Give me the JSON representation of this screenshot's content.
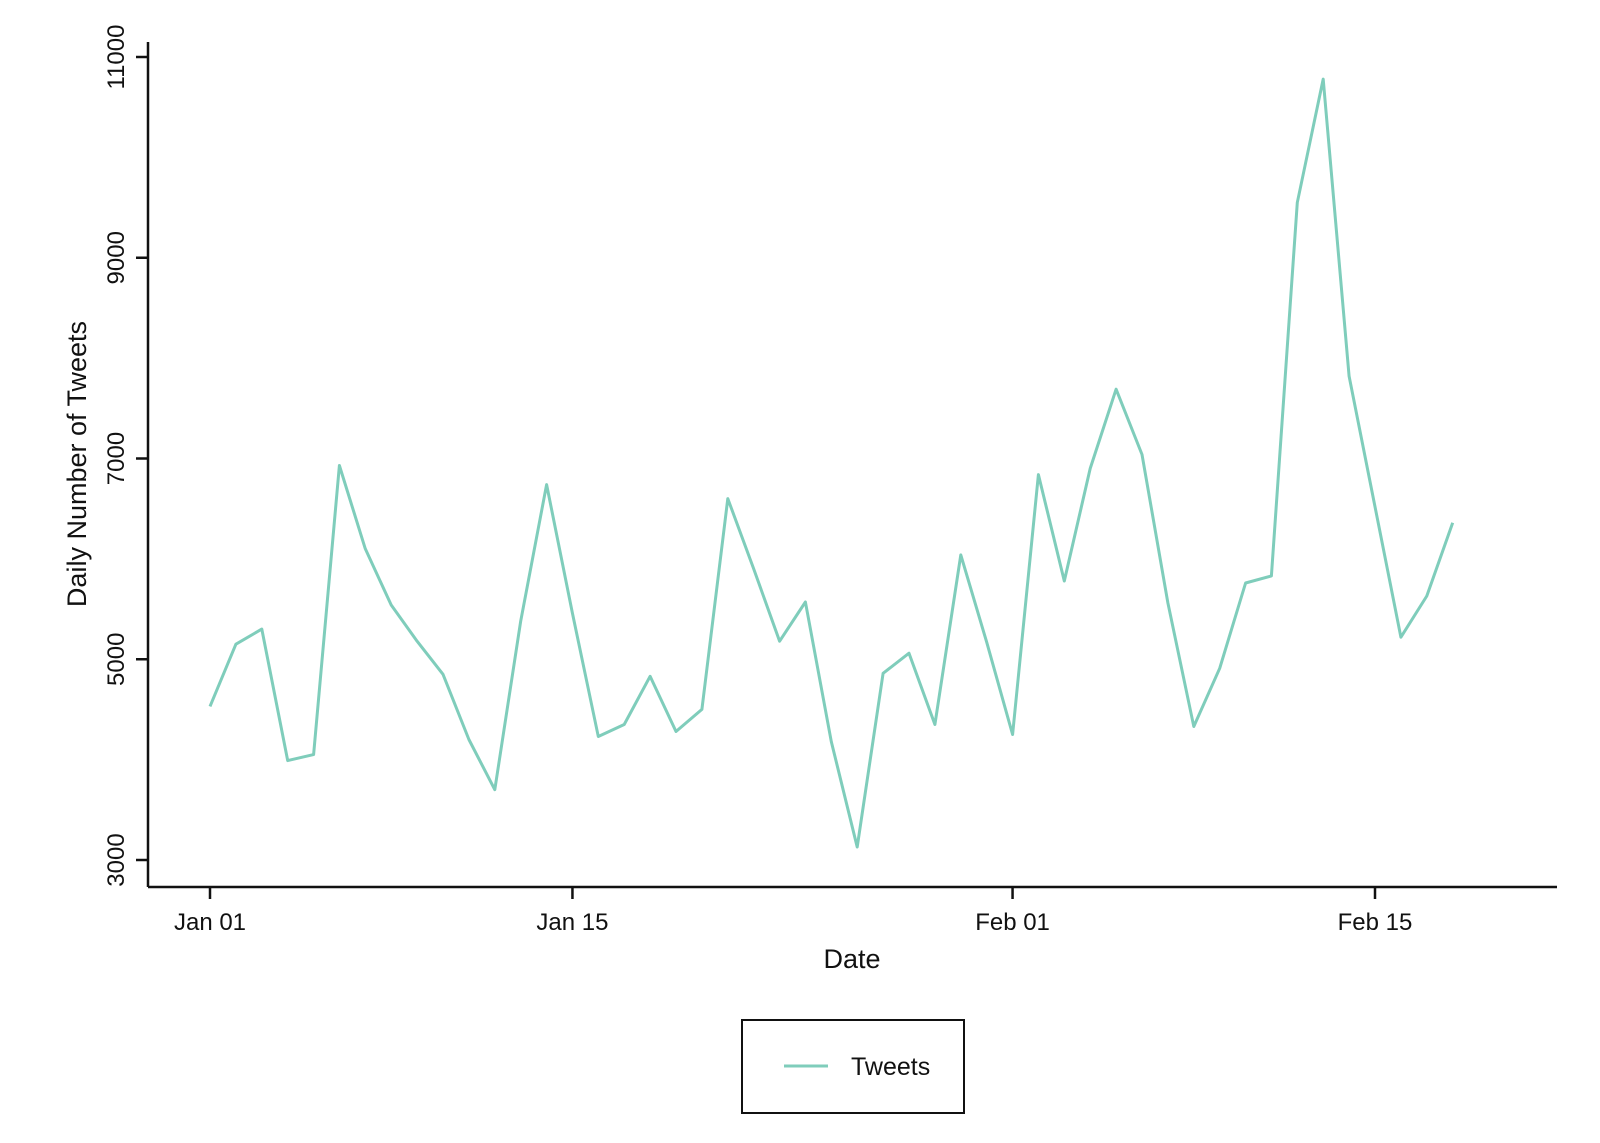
{
  "chart_data": {
    "type": "line",
    "title": "",
    "xlabel": "Date",
    "ylabel": "Daily Number of Tweets",
    "ylim": [
      3000,
      11200
    ],
    "xlim": [
      "2019-12-29",
      "2020-02-22"
    ],
    "yticks": [
      3000,
      5000,
      7000,
      9000,
      11000
    ],
    "yticklabels": [
      "3000",
      "5000",
      "7000",
      "9000",
      "11000"
    ],
    "xticks": [
      "2020-01-01",
      "2020-01-15",
      "2020-02-01",
      "2020-02-15"
    ],
    "xticklabels": [
      "Jan 01",
      "Jan 15",
      "Feb 01",
      "Feb 15"
    ],
    "grid": false,
    "legend": {
      "position": "bottom-center",
      "entries": [
        "Tweets"
      ]
    },
    "series": [
      {
        "name": "Tweets",
        "color": "#7fcdbb",
        "x": [
          "2020-01-01",
          "2020-01-02",
          "2020-01-03",
          "2020-01-04",
          "2020-01-05",
          "2020-01-06",
          "2020-01-07",
          "2020-01-08",
          "2020-01-09",
          "2020-01-10",
          "2020-01-11",
          "2020-01-12",
          "2020-01-13",
          "2020-01-14",
          "2020-01-15",
          "2020-01-16",
          "2020-01-17",
          "2020-01-18",
          "2020-01-19",
          "2020-01-20",
          "2020-01-21",
          "2020-01-22",
          "2020-01-23",
          "2020-01-24",
          "2020-01-25",
          "2020-01-26",
          "2020-01-27",
          "2020-01-28",
          "2020-01-29",
          "2020-01-30",
          "2020-01-31",
          "2020-02-01",
          "2020-02-02",
          "2020-02-03",
          "2020-02-04",
          "2020-02-05",
          "2020-02-06",
          "2020-02-07",
          "2020-02-08",
          "2020-02-09",
          "2020-02-10",
          "2020-02-11",
          "2020-02-12",
          "2020-02-13",
          "2020-02-14",
          "2020-02-15",
          "2020-02-16",
          "2020-02-17",
          "2020-02-18"
        ],
        "values": [
          4530,
          5150,
          5300,
          3990,
          4050,
          6930,
          6100,
          5540,
          5180,
          4850,
          4200,
          3700,
          5380,
          6740,
          5460,
          4230,
          4350,
          4830,
          4280,
          4500,
          6600,
          5900,
          5180,
          5570,
          4180,
          3130,
          4860,
          5060,
          4350,
          6040,
          5170,
          4250,
          6840,
          5780,
          6900,
          7690,
          7040,
          5560,
          4330,
          4910,
          5760,
          5830,
          9550,
          10780,
          7820,
          6520,
          5220,
          5630,
          6360
        ]
      }
    ]
  }
}
